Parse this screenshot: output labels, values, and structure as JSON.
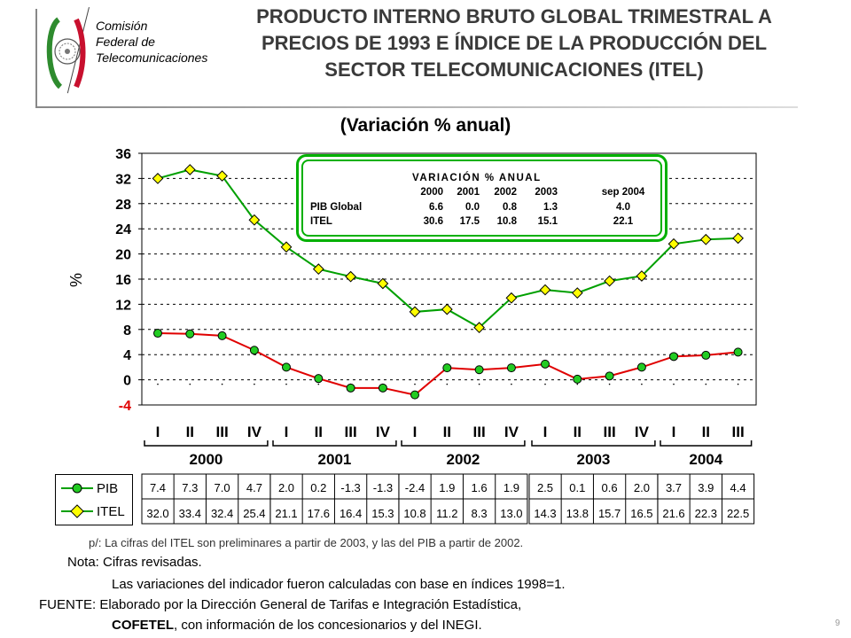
{
  "logo": {
    "lines": [
      "Comisión",
      "Federal de",
      "Telecomunicaciones"
    ]
  },
  "header": {
    "title_lines": [
      "PRODUCTO INTERNO BRUTO GLOBAL TRIMESTRAL A",
      "PRECIOS DE 1993 E ÍNDICE DE LA PRODUCCIÓN DEL",
      "SECTOR TELECOMUNICACIONES (ITEL)"
    ],
    "subtitle": "(Variación % anual)"
  },
  "colors": {
    "pib_line": "#e00000",
    "itel_line": "#00a000",
    "pib_marker": "#22cc22",
    "itel_marker": "#ffff00",
    "table_border": "#00b000",
    "tick_text": "#000000",
    "neg_tick_text": "#e00000"
  },
  "chart_data": {
    "type": "line",
    "ylabel": "%",
    "ylim": [
      -4,
      36
    ],
    "yticks": [
      "36",
      "32",
      "28",
      "24",
      "20",
      "16",
      "12",
      "8",
      "4",
      "0",
      "-4"
    ],
    "grid": true,
    "quarters": [
      "I",
      "II",
      "III",
      "IV",
      "I",
      "II",
      "III",
      "IV",
      "I",
      "II",
      "III",
      "IV",
      "I",
      "II",
      "III",
      "IV",
      "I",
      "II",
      "III"
    ],
    "years": [
      "2000",
      "2001",
      "2002",
      "2003",
      "2004"
    ],
    "series": [
      {
        "name": "PIB",
        "values": [
          7.4,
          7.3,
          7.0,
          4.7,
          2.0,
          0.2,
          -1.3,
          -1.3,
          -2.4,
          1.9,
          1.6,
          1.9,
          2.5,
          0.1,
          0.6,
          2.0,
          3.7,
          3.9,
          4.4
        ]
      },
      {
        "name": "ITEL",
        "values": [
          32.0,
          33.4,
          32.4,
          25.4,
          21.1,
          17.6,
          16.4,
          15.3,
          10.8,
          11.2,
          8.3,
          13.0,
          14.3,
          13.8,
          15.7,
          16.5,
          21.6,
          22.3,
          22.5
        ]
      }
    ],
    "data_table": {
      "PIB": [
        "7.4",
        "7.3",
        "7.0",
        "4.7",
        "2.0",
        "0.2",
        "-1.3",
        "-1.3",
        "-2.4",
        "1.9",
        "1.6",
        "1.9",
        "2.5",
        "0.1",
        "0.6",
        "2.0",
        "3.7",
        "3.9",
        "4.4"
      ],
      "ITEL": [
        "32.0",
        "33.4",
        "32.4",
        "25.4",
        "21.1",
        "17.6",
        "16.4",
        "15.3",
        "10.8",
        "11.2",
        "8.3",
        "13.0",
        "14.3",
        "13.8",
        "15.7",
        "16.5",
        "21.6",
        "22.3",
        "22.5"
      ]
    },
    "inset_table": {
      "title": "VARIACIÓN % ANUAL",
      "columns": [
        "2000",
        "2001",
        "2002",
        "2003",
        "sep 2004"
      ],
      "rows": [
        {
          "label": "PIB Global",
          "values": [
            "6.6",
            "0.0",
            "0.8",
            "1.3",
            "4.0"
          ]
        },
        {
          "label": "ITEL",
          "values": [
            "30.6",
            "17.5",
            "10.8",
            "15.1",
            "22.1"
          ]
        }
      ]
    }
  },
  "notes": {
    "preliminary": "p/: La cifras del  ITEL son preliminares a partir de 2003, y las del PIB a partir de 2002.",
    "nota_label": "Nota: Cifras revisadas.",
    "nota_detail": "Las variaciones del indicador fueron calculadas con base en  índices 1998=1.",
    "fuente_label": "FUENTE: Elaborado por la Dirección General de Tarifas e Integración Estadística,",
    "fuente_org": "COFETEL",
    "fuente_rest": ", con información de los concesionarios y del INEGI."
  },
  "page_number": "9"
}
